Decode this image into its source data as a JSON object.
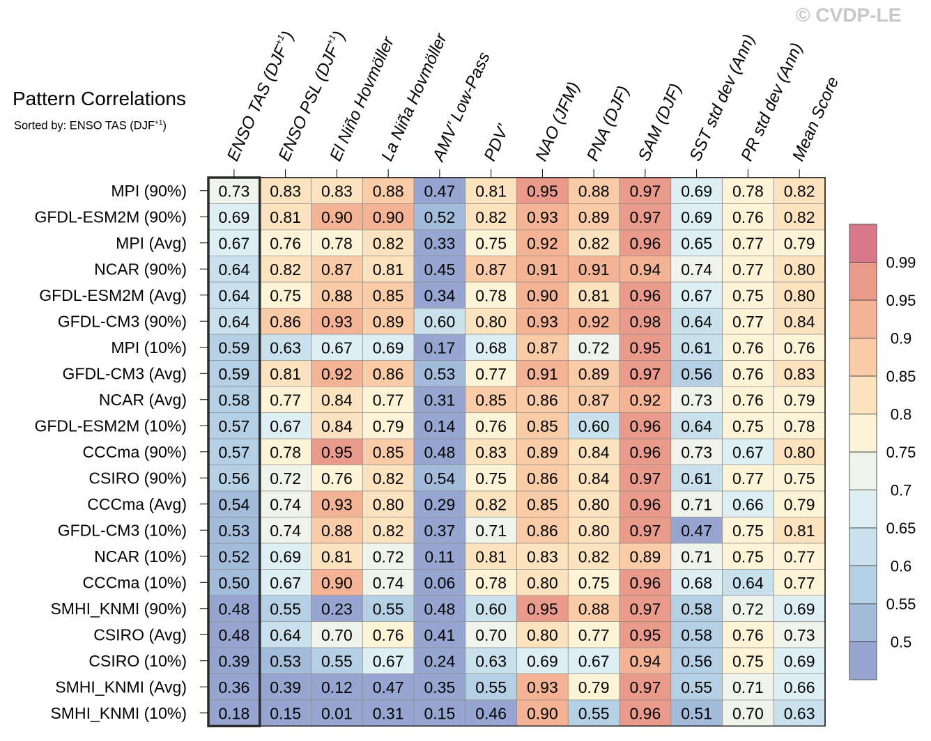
{
  "watermark": "© CVDP-LE",
  "title": "Pattern Correlations",
  "subtitle_prefix": "Sorted by: ENSO TAS (DJF",
  "subtitle_sup": "+1",
  "subtitle_suffix": ")",
  "chart_data": {
    "type": "heatmap",
    "columns": [
      {
        "label": "ENSO TAS (DJF",
        "sup": "+1",
        "suffix": ")"
      },
      {
        "label": "ENSO PSL (DJF",
        "sup": "+1",
        "suffix": ")"
      },
      {
        "label": "El Niño Hovmöller",
        "sup": "",
        "suffix": ""
      },
      {
        "label": "La Niña Hovmöller",
        "sup": "",
        "suffix": ""
      },
      {
        "label": "AMV’ Low-Pass",
        "sup": "",
        "suffix": ""
      },
      {
        "label": "PDV’",
        "sup": "",
        "suffix": ""
      },
      {
        "label": "NAO (JFM)",
        "sup": "",
        "suffix": ""
      },
      {
        "label": "PNA (DJF)",
        "sup": "",
        "suffix": ""
      },
      {
        "label": "SAM (DJF)",
        "sup": "",
        "suffix": ""
      },
      {
        "label": "SST std dev (Ann)",
        "sup": "",
        "suffix": ""
      },
      {
        "label": "PR std dev (Ann)",
        "sup": "",
        "suffix": ""
      },
      {
        "label": "Mean Score",
        "sup": "",
        "suffix": ""
      }
    ],
    "rows": [
      {
        "label": "MPI (90%)",
        "values": [
          0.73,
          0.83,
          0.83,
          0.88,
          0.47,
          0.81,
          0.95,
          0.88,
          0.97,
          0.69,
          0.78,
          0.82
        ]
      },
      {
        "label": "GFDL-ESM2M (90%)",
        "values": [
          0.69,
          0.81,
          0.9,
          0.9,
          0.52,
          0.82,
          0.93,
          0.89,
          0.97,
          0.69,
          0.76,
          0.82
        ]
      },
      {
        "label": "MPI (Avg)",
        "values": [
          0.67,
          0.76,
          0.78,
          0.82,
          0.33,
          0.75,
          0.92,
          0.82,
          0.96,
          0.65,
          0.77,
          0.79
        ]
      },
      {
        "label": "NCAR (90%)",
        "values": [
          0.64,
          0.82,
          0.87,
          0.81,
          0.45,
          0.87,
          0.91,
          0.91,
          0.94,
          0.74,
          0.77,
          0.8
        ]
      },
      {
        "label": "GFDL-ESM2M (Avg)",
        "values": [
          0.64,
          0.75,
          0.88,
          0.85,
          0.34,
          0.78,
          0.9,
          0.81,
          0.96,
          0.67,
          0.75,
          0.8
        ]
      },
      {
        "label": "GFDL-CM3 (90%)",
        "values": [
          0.64,
          0.86,
          0.93,
          0.89,
          0.6,
          0.8,
          0.93,
          0.92,
          0.98,
          0.64,
          0.77,
          0.84
        ]
      },
      {
        "label": "MPI (10%)",
        "values": [
          0.59,
          0.63,
          0.67,
          0.69,
          0.17,
          0.68,
          0.87,
          0.72,
          0.95,
          0.61,
          0.76,
          0.76
        ]
      },
      {
        "label": "GFDL-CM3 (Avg)",
        "values": [
          0.59,
          0.81,
          0.92,
          0.86,
          0.53,
          0.77,
          0.91,
          0.89,
          0.97,
          0.56,
          0.76,
          0.83
        ]
      },
      {
        "label": "NCAR (Avg)",
        "values": [
          0.58,
          0.77,
          0.84,
          0.77,
          0.31,
          0.85,
          0.86,
          0.87,
          0.92,
          0.73,
          0.76,
          0.79
        ]
      },
      {
        "label": "GFDL-ESM2M (10%)",
        "values": [
          0.57,
          0.67,
          0.84,
          0.79,
          0.14,
          0.76,
          0.85,
          0.6,
          0.96,
          0.64,
          0.75,
          0.78
        ]
      },
      {
        "label": "CCCma (90%)",
        "values": [
          0.57,
          0.78,
          0.95,
          0.85,
          0.48,
          0.83,
          0.89,
          0.84,
          0.96,
          0.73,
          0.67,
          0.8
        ]
      },
      {
        "label": "CSIRO (90%)",
        "values": [
          0.56,
          0.72,
          0.76,
          0.82,
          0.54,
          0.75,
          0.86,
          0.84,
          0.97,
          0.61,
          0.77,
          0.75
        ]
      },
      {
        "label": "CCCma (Avg)",
        "values": [
          0.54,
          0.74,
          0.93,
          0.8,
          0.29,
          0.82,
          0.85,
          0.8,
          0.96,
          0.71,
          0.66,
          0.79
        ]
      },
      {
        "label": "GFDL-CM3 (10%)",
        "values": [
          0.53,
          0.74,
          0.88,
          0.82,
          0.37,
          0.71,
          0.86,
          0.8,
          0.97,
          0.47,
          0.75,
          0.81
        ]
      },
      {
        "label": "NCAR (10%)",
        "values": [
          0.52,
          0.69,
          0.81,
          0.72,
          0.11,
          0.81,
          0.83,
          0.82,
          0.89,
          0.71,
          0.75,
          0.77
        ]
      },
      {
        "label": "CCCma (10%)",
        "values": [
          0.5,
          0.67,
          0.9,
          0.74,
          0.06,
          0.78,
          0.8,
          0.75,
          0.96,
          0.68,
          0.64,
          0.77
        ]
      },
      {
        "label": "SMHI_KNMI (90%)",
        "values": [
          0.48,
          0.55,
          0.23,
          0.55,
          0.48,
          0.6,
          0.95,
          0.88,
          0.97,
          0.58,
          0.72,
          0.69
        ]
      },
      {
        "label": "CSIRO (Avg)",
        "values": [
          0.48,
          0.64,
          0.7,
          0.76,
          0.41,
          0.7,
          0.8,
          0.77,
          0.95,
          0.58,
          0.76,
          0.73
        ]
      },
      {
        "label": "CSIRO (10%)",
        "values": [
          0.39,
          0.53,
          0.55,
          0.67,
          0.24,
          0.63,
          0.69,
          0.67,
          0.94,
          0.56,
          0.75,
          0.69
        ]
      },
      {
        "label": "SMHI_KNMI (Avg)",
        "values": [
          0.36,
          0.39,
          0.12,
          0.47,
          0.35,
          0.55,
          0.93,
          0.79,
          0.97,
          0.55,
          0.71,
          0.66
        ]
      },
      {
        "label": "SMHI_KNMI (10%)",
        "values": [
          0.18,
          0.15,
          0.01,
          0.31,
          0.15,
          0.46,
          0.9,
          0.55,
          0.96,
          0.51,
          0.7,
          0.63
        ]
      }
    ],
    "highlight_column": 0,
    "colorbar": {
      "levels": [
        0.5,
        0.55,
        0.6,
        0.65,
        0.7,
        0.75,
        0.8,
        0.85,
        0.9,
        0.95,
        0.99
      ],
      "tick_labels": [
        "0.5",
        "0.55",
        "0.6",
        "0.65",
        "0.7",
        "0.75",
        "0.8",
        "0.85",
        "0.9",
        "0.95",
        "0.99"
      ],
      "colors": [
        "#96a6d0",
        "#a4bcdb",
        "#b5d0e4",
        "#c9e1ec",
        "#ddeff3",
        "#eff3ea",
        "#fdf3d6",
        "#fce3bf",
        "#f9cca7",
        "#f3b394",
        "#ea9a8a",
        "#d9788a"
      ],
      "placement": "right"
    }
  }
}
